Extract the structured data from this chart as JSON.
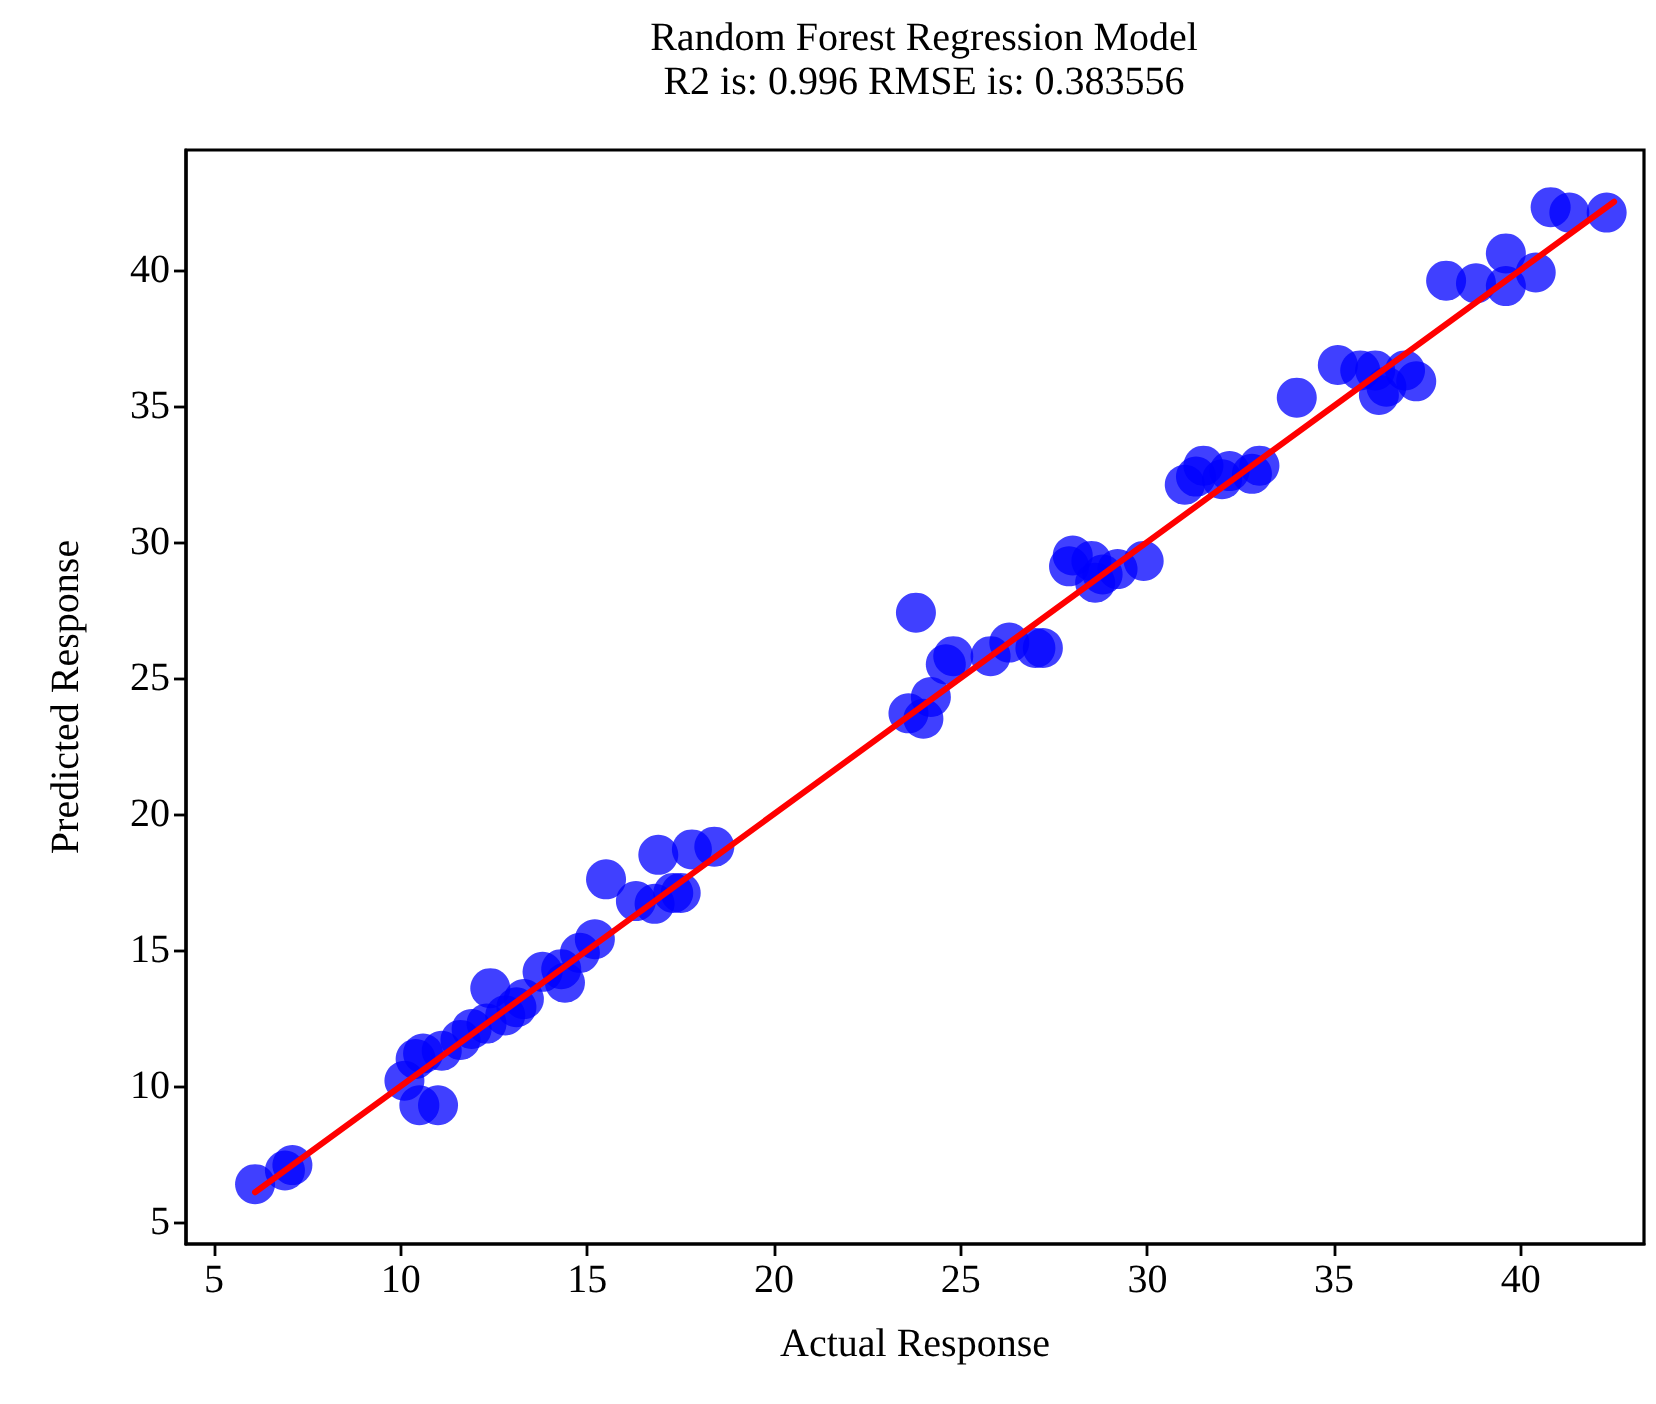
{
  "chart_data": {
    "type": "scatter",
    "title": "Random Forest Regression Model",
    "subtitle": "R2 is: 0.996 RMSE is: 0.383556",
    "xlabel": "Actual Response",
    "ylabel": "Predicted Response",
    "xlim": [
      4.25,
      43.3
    ],
    "xticks": [
      5,
      10,
      15,
      20,
      25,
      30,
      35,
      40
    ],
    "ylim": [
      4.2,
      44.4
    ],
    "yticks": [
      5,
      10,
      15,
      20,
      25,
      30,
      35,
      40
    ],
    "grid": false,
    "marker": "circle",
    "series": [
      {
        "color": "#0000ff",
        "x": [
          6.1,
          6.9,
          7.1,
          10.1,
          10.4,
          10.6,
          10.5,
          11.0,
          11.1,
          11.6,
          11.9,
          12.3,
          12.4,
          12.8,
          13.1,
          13.3,
          13.8,
          14.3,
          14.4,
          14.8,
          15.2,
          15.5,
          16.3,
          16.8,
          16.9,
          17.3,
          17.5,
          17.8,
          18.4,
          23.8,
          23.6,
          24.0,
          24.2,
          24.6,
          24.8,
          25.8,
          26.3,
          27.0,
          27.2,
          27.9,
          28.0,
          28.5,
          28.6,
          28.8,
          29.2,
          29.9,
          31.0,
          31.3,
          31.5,
          32.0,
          32.2,
          32.8,
          33.0,
          34.0,
          35.1,
          35.7,
          36.1,
          36.2,
          36.4,
          36.9,
          37.2,
          38.0,
          38.8,
          39.6,
          39.6,
          40.4,
          40.8,
          41.3,
          42.3
        ],
        "values": [
          6.4,
          6.9,
          7.1,
          10.2,
          11.0,
          11.2,
          9.3,
          9.3,
          11.3,
          11.7,
          12.1,
          12.3,
          13.6,
          12.6,
          12.9,
          13.2,
          14.2,
          14.3,
          13.8,
          14.9,
          15.4,
          17.6,
          16.8,
          16.7,
          18.5,
          17.1,
          17.1,
          18.7,
          18.8,
          27.4,
          23.7,
          23.5,
          24.3,
          25.5,
          25.8,
          25.8,
          26.3,
          26.1,
          26.1,
          29.1,
          29.5,
          29.3,
          28.5,
          28.8,
          29.0,
          29.3,
          32.1,
          32.4,
          32.8,
          32.3,
          32.6,
          32.5,
          32.8,
          35.3,
          36.5,
          36.3,
          36.3,
          35.4,
          35.7,
          36.3,
          35.9,
          39.6,
          39.5,
          40.6,
          39.4,
          39.9,
          42.3,
          42.1,
          42.1
        ]
      },
      {
        "type": "line",
        "color": "#ff0000",
        "marker": "none",
        "line_style": "solid",
        "x": [
          6.1,
          42.5
        ],
        "values": [
          6.1,
          42.5
        ]
      }
    ]
  }
}
